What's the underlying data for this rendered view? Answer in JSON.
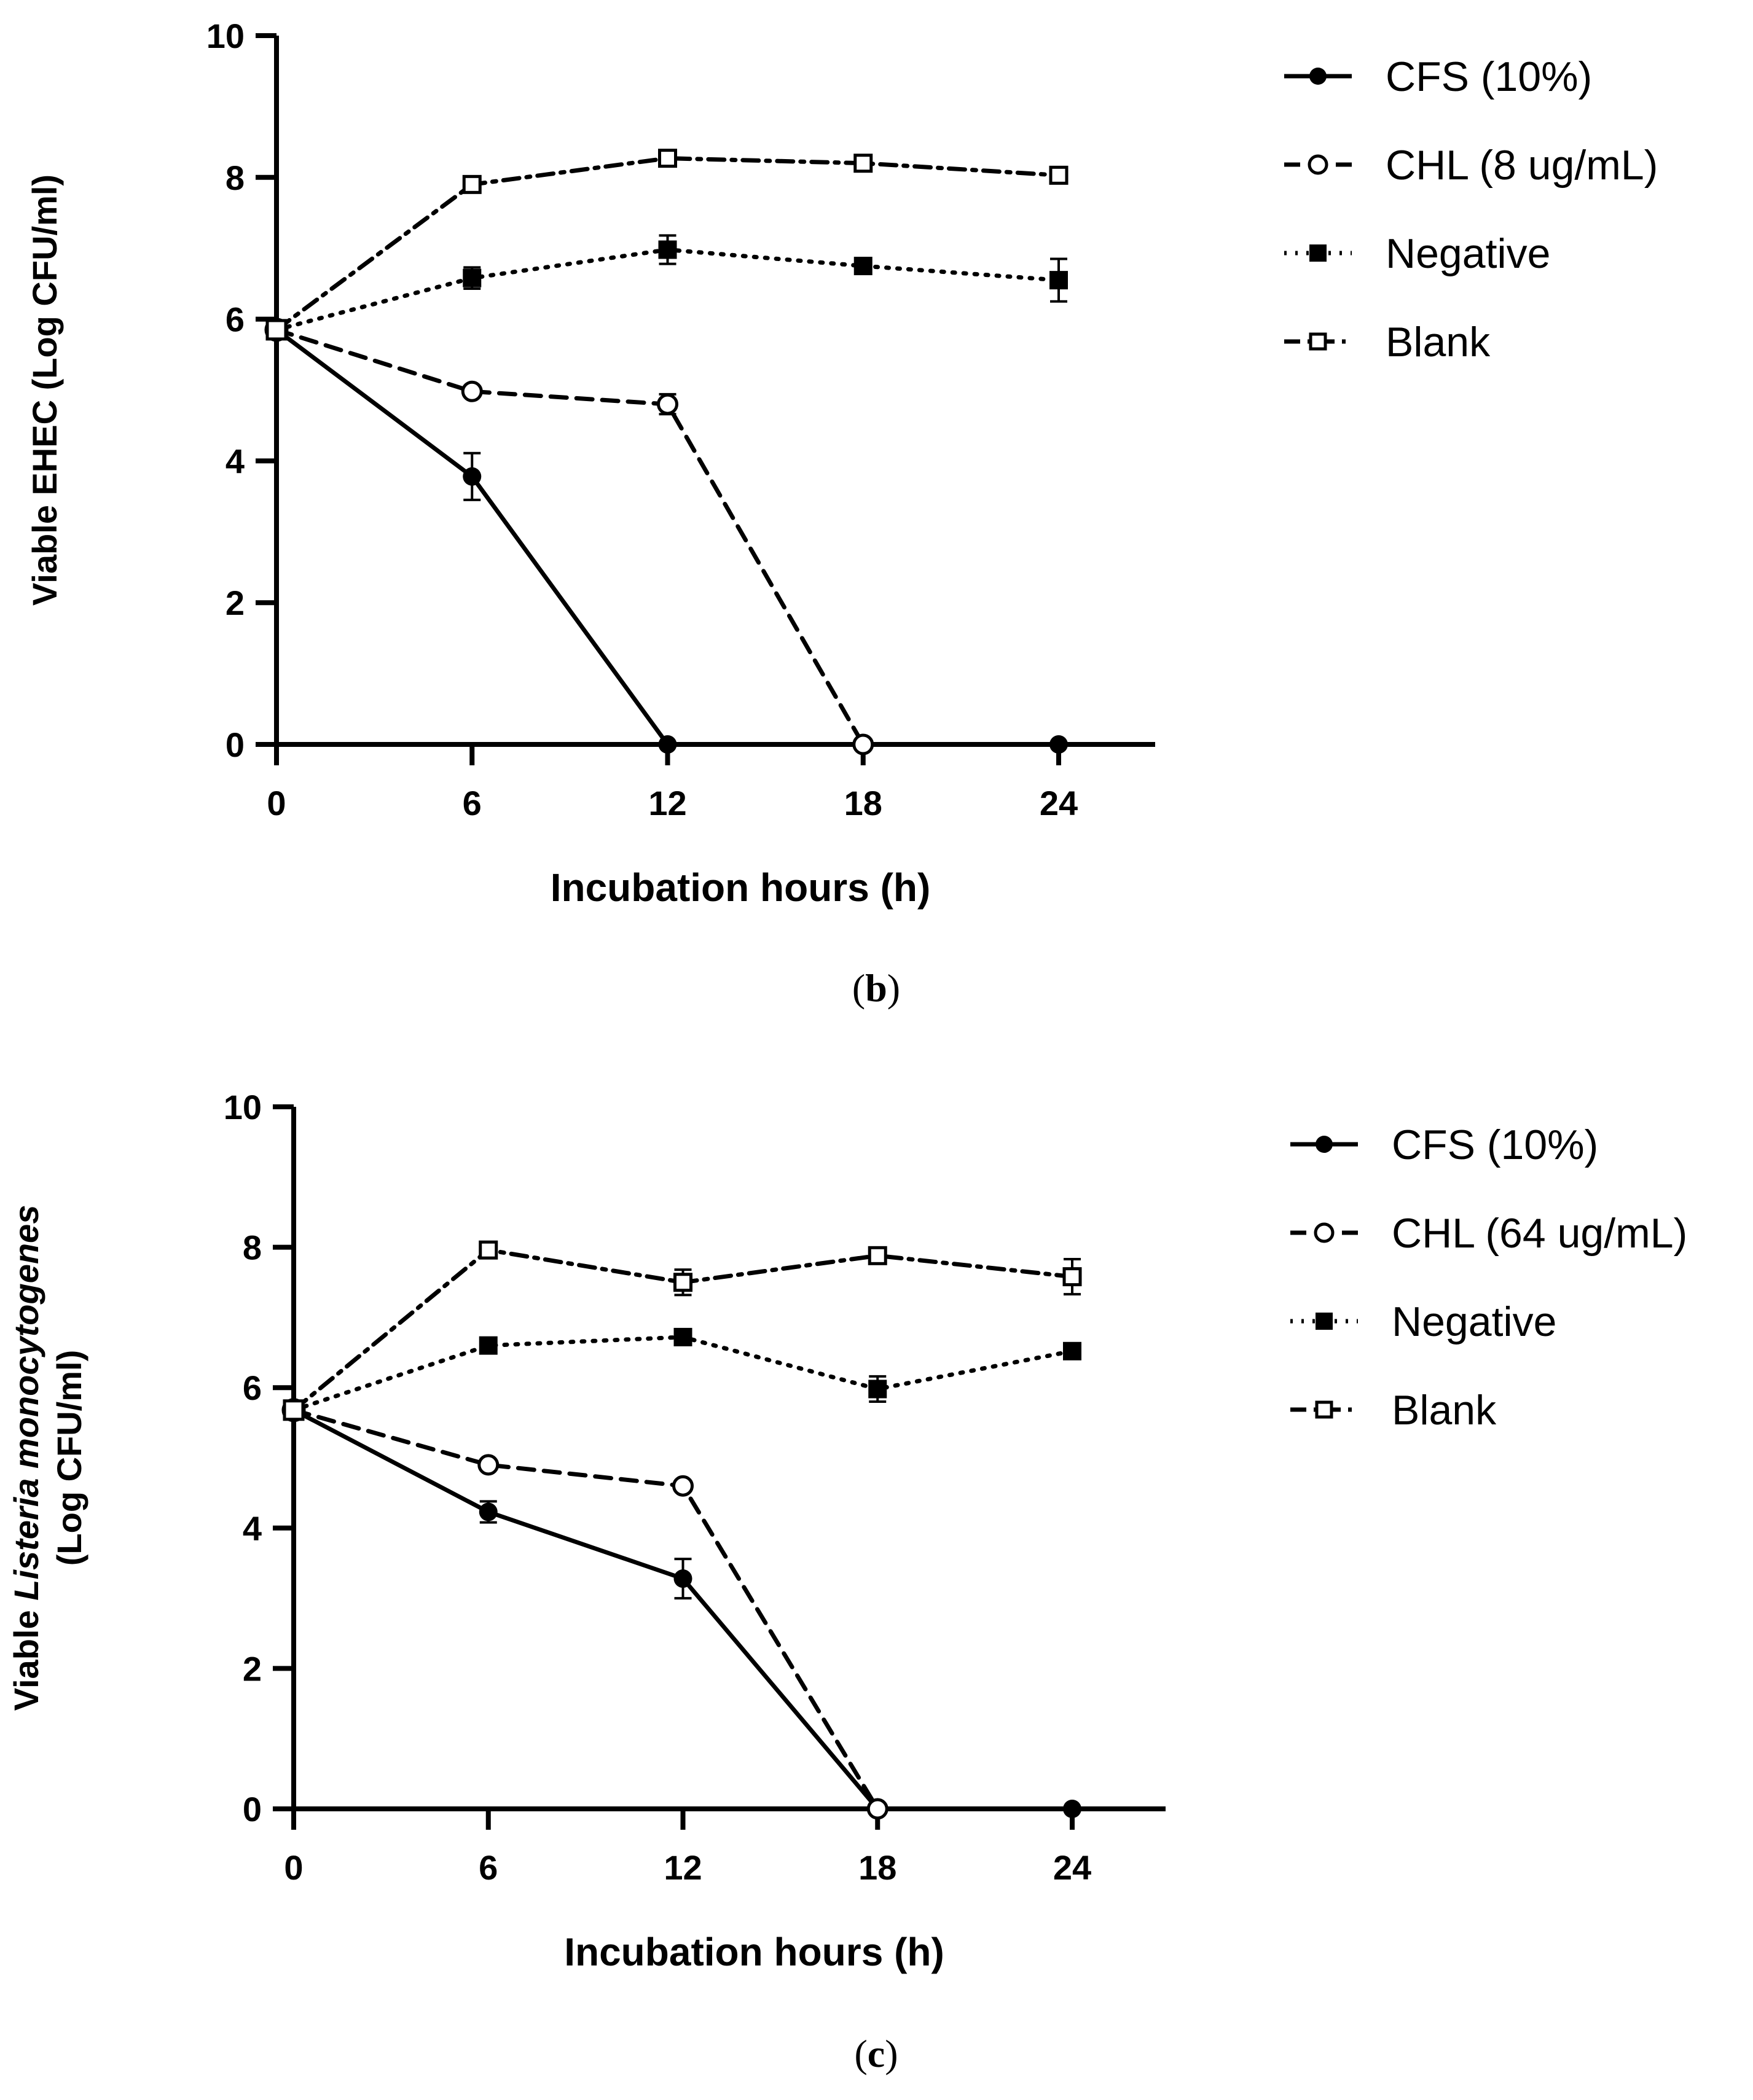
{
  "chart_data": [
    {
      "type": "line",
      "panel": "b",
      "caption_open": "(",
      "caption_letter": "b",
      "caption_close": ")",
      "xlabel": "Incubation hours (h)",
      "ylabel": "Viable EHEC (Log CFU/ml)",
      "ylabel_parts": [
        "Viable EHEC (Log CFU/ml)"
      ],
      "x": [
        0,
        6,
        12,
        18,
        24
      ],
      "xticks": [
        "0",
        "6",
        "12",
        "18",
        "24"
      ],
      "yticks": [
        "0",
        "2",
        "4",
        "6",
        "8",
        "10"
      ],
      "ylim": [
        0,
        10
      ],
      "series": [
        {
          "name": "CFS (10%)",
          "style": "solid",
          "marker": "filled-circle",
          "values": [
            5.85,
            3.78,
            0,
            0,
            0
          ],
          "errors": [
            0,
            0.33,
            0,
            0,
            0
          ]
        },
        {
          "name": "CHL (8 ug/mL)",
          "style": "dashed",
          "marker": "open-circle",
          "values": [
            5.85,
            4.98,
            4.8,
            0,
            null
          ],
          "errors": [
            0,
            0,
            0.14,
            0,
            0
          ]
        },
        {
          "name": "Negative",
          "style": "dotted",
          "marker": "filled-square",
          "values": [
            5.85,
            6.58,
            6.98,
            6.75,
            6.55
          ],
          "errors": [
            0,
            0.15,
            0.2,
            0,
            0.3
          ]
        },
        {
          "name": "Blank",
          "style": "dashdot",
          "marker": "open-square",
          "values": [
            5.85,
            7.9,
            8.27,
            8.2,
            8.03
          ],
          "errors": [
            0,
            0,
            0,
            0,
            0
          ]
        }
      ]
    },
    {
      "type": "line",
      "panel": "c",
      "caption_open": "(",
      "caption_letter": "c",
      "caption_close": ")",
      "xlabel": "Incubation hours (h)",
      "ylabel": "Viable Listeria monocytogenes (Log CFU/ml)",
      "ylabel_parts": [
        "Viable ",
        "Listeria monocytogenes",
        "(Log CFU/ml)"
      ],
      "x": [
        0,
        6,
        12,
        18,
        24
      ],
      "xticks": [
        "0",
        "6",
        "12",
        "18",
        "24"
      ],
      "yticks": [
        "0",
        "2",
        "4",
        "6",
        "8",
        "10"
      ],
      "ylim": [
        0,
        10
      ],
      "series": [
        {
          "name": "CFS (10%)",
          "style": "solid",
          "marker": "filled-circle",
          "values": [
            5.68,
            4.23,
            3.28,
            0,
            0
          ],
          "errors": [
            0,
            0.15,
            0.28,
            0,
            0
          ]
        },
        {
          "name": "CHL (64 ug/mL)",
          "style": "dashed",
          "marker": "open-circle",
          "values": [
            5.68,
            4.9,
            4.6,
            0,
            null
          ],
          "errors": [
            0,
            0,
            0,
            0,
            0
          ]
        },
        {
          "name": "Negative",
          "style": "dotted",
          "marker": "filled-square",
          "values": [
            5.68,
            6.6,
            6.72,
            5.98,
            6.52
          ],
          "errors": [
            0,
            0,
            0,
            0.18,
            0
          ]
        },
        {
          "name": "Blank",
          "style": "dashdot",
          "marker": "open-square",
          "values": [
            5.68,
            7.96,
            7.5,
            7.88,
            7.58
          ],
          "errors": [
            0,
            0,
            0.18,
            0,
            0.25
          ]
        }
      ]
    }
  ]
}
